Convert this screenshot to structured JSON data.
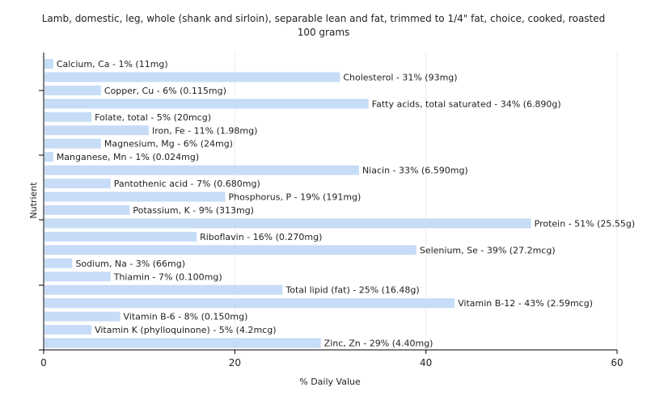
{
  "chart_data": {
    "type": "bar",
    "orientation": "horizontal",
    "title_line1": "Lamb, domestic, leg, whole (shank and sirloin), separable lean and fat, trimmed to 1/4\" fat, choice, cooked, roasted",
    "title_line2": "100 grams",
    "xlabel": "% Daily Value",
    "ylabel": "Nutrient",
    "xlim": [
      0,
      60
    ],
    "xticks": [
      0,
      20,
      40,
      60
    ],
    "grid": true,
    "bar_color": "#c6dcf7",
    "categories": [
      "Calcium, Ca",
      "Cholesterol",
      "Copper, Cu",
      "Fatty acids, total saturated",
      "Folate, total",
      "Iron, Fe",
      "Magnesium, Mg",
      "Manganese, Mn",
      "Niacin",
      "Pantothenic acid",
      "Phosphorus, P",
      "Potassium, K",
      "Protein",
      "Riboflavin",
      "Selenium, Se",
      "Sodium, Na",
      "Thiamin",
      "Total lipid (fat)",
      "Vitamin B-12",
      "Vitamin B-6",
      "Vitamin K (phylloquinone)",
      "Zinc, Zn"
    ],
    "values": [
      1,
      31,
      6,
      34,
      5,
      11,
      6,
      1,
      33,
      7,
      19,
      9,
      51,
      16,
      39,
      3,
      7,
      25,
      43,
      8,
      5,
      29
    ],
    "labels": [
      "Calcium, Ca - 1% (11mg)",
      "Cholesterol - 31% (93mg)",
      "Copper, Cu - 6% (0.115mg)",
      "Fatty acids, total saturated - 34% (6.890g)",
      "Folate, total - 5% (20mcg)",
      "Iron, Fe - 11% (1.98mg)",
      "Magnesium, Mg - 6% (24mg)",
      "Manganese, Mn - 1% (0.024mg)",
      "Niacin - 33% (6.590mg)",
      "Pantothenic acid - 7% (0.680mg)",
      "Phosphorus, P - 19% (191mg)",
      "Potassium, K - 9% (313mg)",
      "Protein - 51% (25.55g)",
      "Riboflavin - 16% (0.270mg)",
      "Selenium, Se - 39% (27.2mcg)",
      "Sodium, Na - 3% (66mg)",
      "Thiamin - 7% (0.100mg)",
      "Total lipid (fat) - 25% (16.48g)",
      "Vitamin B-12 - 43% (2.59mcg)",
      "Vitamin B-6 - 8% (0.150mg)",
      "Vitamin K (phylloquinone) - 5% (4.2mcg)",
      "Zinc, Zn - 29% (4.40mg)"
    ]
  }
}
